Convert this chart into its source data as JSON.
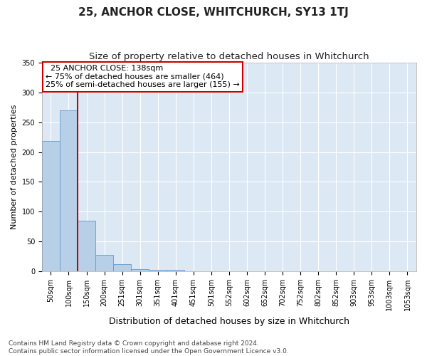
{
  "title": "25, ANCHOR CLOSE, WHITCHURCH, SY13 1TJ",
  "subtitle": "Size of property relative to detached houses in Whitchurch",
  "xlabel": "Distribution of detached houses by size in Whitchurch",
  "ylabel": "Number of detached properties",
  "categories": [
    "50sqm",
    "100sqm",
    "150sqm",
    "200sqm",
    "251sqm",
    "301sqm",
    "351sqm",
    "401sqm",
    "451sqm",
    "501sqm",
    "552sqm",
    "602sqm",
    "652sqm",
    "702sqm",
    "752sqm",
    "802sqm",
    "852sqm",
    "903sqm",
    "953sqm",
    "1003sqm",
    "1053sqm"
  ],
  "values": [
    219,
    270,
    85,
    28,
    12,
    4,
    3,
    3,
    0,
    0,
    0,
    0,
    0,
    0,
    0,
    0,
    0,
    0,
    0,
    0,
    0
  ],
  "bar_color": "#b8cfe8",
  "bar_edge_color": "#6699cc",
  "vline_color": "#cc0000",
  "vline_x_index": 1.5,
  "annotation_line1": "  25 ANCHOR CLOSE: 138sqm",
  "annotation_line2": "← 75% of detached houses are smaller (464)",
  "annotation_line3": "25% of semi-detached houses are larger (155) →",
  "annotation_box_facecolor": "#ffffff",
  "annotation_box_edgecolor": "#cc0000",
  "ylim": [
    0,
    350
  ],
  "yticks": [
    0,
    50,
    100,
    150,
    200,
    250,
    300,
    350
  ],
  "fig_facecolor": "#ffffff",
  "ax_facecolor": "#dde8f5",
  "grid_color": "#ffffff",
  "footer_line1": "Contains HM Land Registry data © Crown copyright and database right 2024.",
  "footer_line2": "Contains public sector information licensed under the Open Government Licence v3.0.",
  "title_fontsize": 11,
  "subtitle_fontsize": 9.5,
  "xlabel_fontsize": 9,
  "ylabel_fontsize": 8,
  "tick_fontsize": 7,
  "annotation_fontsize": 8,
  "footer_fontsize": 6.5
}
